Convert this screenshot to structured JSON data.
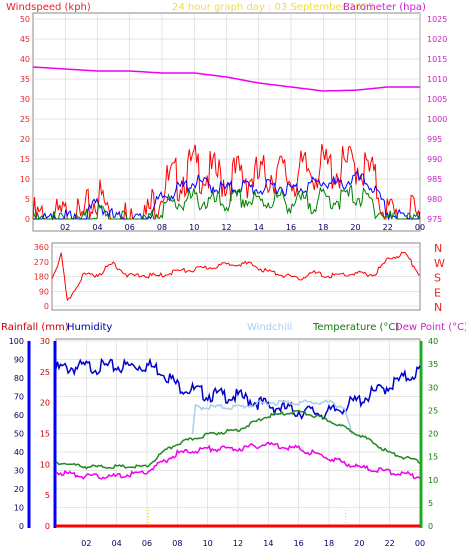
{
  "header": {
    "windspeed_title": "Windspeed (kph)",
    "graph_title": "24 hour graph day : 03 September 2025",
    "barometer_title": "Barometer (hpa)"
  },
  "lower_header": {
    "rainfall": "Rainfall (mm)",
    "humidity": "Humidity",
    "windchill": "Windchill",
    "temperature": "Temperature (°C)",
    "dewpoint": "Dew Point (°C)"
  },
  "colors": {
    "windspeed": "#ff0000",
    "gust": "#ff0000",
    "avg": "#0000ff",
    "low": "#008000",
    "barometer": "#ee00ee",
    "direction": "#ff0000",
    "humidity": "#0000cc",
    "windchill": "#aaccee",
    "temperature": "#228822",
    "dewpoint": "#ee00ee",
    "rain": "#ff0000",
    "rain_axis": "#0000ff",
    "hour_marker": "#ffcc00",
    "grid": "#cccccc"
  },
  "chart_data": [
    {
      "type": "line",
      "name": "wind-barometer",
      "xlabels": [
        "02",
        "04",
        "06",
        "08",
        "10",
        "12",
        "14",
        "16",
        "18",
        "20",
        "22",
        "00"
      ],
      "left_axis": {
        "label": "Windspeed (kph)",
        "ticks": [
          0,
          5,
          10,
          15,
          20,
          25,
          30,
          35,
          40,
          45,
          50
        ],
        "range": [
          0,
          50
        ]
      },
      "right_axis": {
        "label": "Barometer (hpa)",
        "ticks": [
          975,
          980,
          985,
          990,
          995,
          1000,
          1005,
          1010,
          1015,
          1020,
          1025
        ],
        "range": [
          975,
          1025
        ]
      },
      "series": [
        {
          "name": "gust",
          "hours": [
            0,
            1,
            2,
            3,
            4,
            5,
            6,
            7,
            8,
            9,
            10,
            11,
            12,
            13,
            14,
            15,
            16,
            17,
            18,
            19,
            20,
            21,
            22,
            23,
            24
          ],
          "values": [
            2,
            1,
            2,
            1,
            8,
            2,
            1,
            2,
            10,
            12,
            15,
            13,
            12,
            13,
            12,
            14,
            12,
            14,
            15,
            14,
            16,
            13,
            3,
            2,
            2
          ]
        },
        {
          "name": "average",
          "hours": [
            0,
            1,
            2,
            3,
            4,
            5,
            6,
            7,
            8,
            9,
            10,
            11,
            12,
            13,
            14,
            15,
            16,
            17,
            18,
            19,
            20,
            21,
            22,
            23,
            24
          ],
          "values": [
            1,
            0,
            1,
            0,
            5,
            1,
            0,
            1,
            6,
            8,
            10,
            9,
            8,
            9,
            8,
            9,
            8,
            9,
            10,
            9,
            11,
            9,
            2,
            1,
            1
          ]
        },
        {
          "name": "lull",
          "hours": [
            0,
            1,
            2,
            3,
            4,
            5,
            6,
            7,
            8,
            9,
            10,
            11,
            12,
            13,
            14,
            15,
            16,
            17,
            18,
            19,
            20,
            21,
            22,
            23,
            24
          ],
          "values": [
            0,
            0,
            0,
            0,
            3,
            0,
            0,
            0,
            4,
            5,
            6,
            5,
            5,
            6,
            5,
            6,
            5,
            5,
            6,
            6,
            7,
            5,
            1,
            0,
            0
          ]
        },
        {
          "name": "barometer",
          "hours": [
            0,
            2,
            4,
            6,
            8,
            10,
            12,
            14,
            16,
            18,
            20,
            22,
            24
          ],
          "values": [
            1013,
            1012.5,
            1012,
            1012,
            1011.5,
            1011.5,
            1010.5,
            1009,
            1008,
            1007,
            1007.2,
            1008,
            1008
          ]
        }
      ]
    },
    {
      "type": "line",
      "name": "wind-direction",
      "left_ticks": [
        "360",
        "270",
        "180",
        "90",
        "0"
      ],
      "right_labels": [
        "N",
        "W",
        "S",
        "E",
        "N"
      ],
      "series": [
        {
          "name": "direction",
          "hours": [
            0,
            0.3,
            0.6,
            1,
            2,
            3,
            4,
            5,
            6,
            7,
            8,
            9,
            10,
            11,
            12,
            13,
            14,
            15,
            16,
            17,
            18,
            19,
            20,
            21,
            22,
            23,
            24
          ],
          "values": [
            180,
            250,
            320,
            30,
            195,
            200,
            270,
            190,
            195,
            190,
            220,
            225,
            240,
            255,
            270,
            260,
            220,
            200,
            170,
            210,
            190,
            200,
            205,
            200,
            300,
            330,
            200
          ]
        }
      ]
    },
    {
      "type": "line",
      "name": "humidity-temperature",
      "left_axis_rain": {
        "label": "Rainfall (mm)",
        "ticks": [
          0,
          5,
          10,
          15,
          20,
          25,
          30
        ]
      },
      "left_axis_humidity": {
        "label": "Humidity",
        "ticks": [
          0,
          10,
          20,
          30,
          40,
          50,
          60,
          70,
          80,
          90,
          100
        ]
      },
      "right_axis": {
        "label": "Temperature (°C)",
        "ticks": [
          0,
          5,
          10,
          15,
          20,
          25,
          30,
          35,
          40
        ]
      },
      "xlabels": [
        "02",
        "04",
        "06",
        "08",
        "10",
        "12",
        "14",
        "16",
        "18",
        "20",
        "22",
        "00"
      ],
      "series": [
        {
          "name": "humidity",
          "hours": [
            0,
            2,
            4,
            6,
            7,
            8,
            10,
            12,
            14,
            16,
            18,
            20,
            22,
            24
          ],
          "values": [
            87,
            88,
            88,
            89,
            86,
            78,
            73,
            72,
            67,
            64,
            63,
            70,
            78,
            86
          ]
        },
        {
          "name": "windchill",
          "hours": [
            9,
            9.2,
            10,
            12,
            14,
            16,
            18,
            19,
            19.5
          ],
          "values": [
            20,
            26,
            26,
            26,
            27,
            27,
            27,
            26,
            20
          ]
        },
        {
          "name": "temperature",
          "hours": [
            0,
            2,
            4,
            6,
            7,
            8,
            10,
            12,
            14,
            16,
            18,
            20,
            22,
            24
          ],
          "values": [
            14,
            13,
            13,
            13,
            16,
            18,
            20,
            21,
            24,
            25,
            23,
            20,
            16,
            14
          ]
        },
        {
          "name": "dewpoint",
          "hours": [
            0,
            2,
            4,
            6,
            7,
            8,
            10,
            12,
            14,
            16,
            18,
            20,
            22,
            24
          ],
          "values": [
            12,
            11,
            11,
            12,
            14,
            16,
            17,
            17,
            18,
            17,
            15,
            13,
            12,
            11
          ]
        },
        {
          "name": "rain",
          "hours": [
            0,
            24
          ],
          "values": [
            0,
            0
          ]
        }
      ],
      "hour_markers": [
        6.1,
        19.1
      ]
    }
  ]
}
